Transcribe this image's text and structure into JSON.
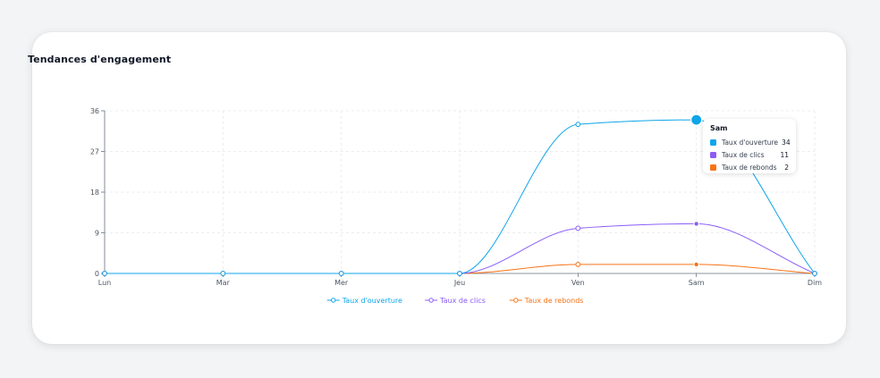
{
  "card": {
    "title": "Tendances d'engagement"
  },
  "chart_data": {
    "type": "line",
    "title": "Tendances d'engagement",
    "categories": [
      "Lun",
      "Mar",
      "Mer",
      "Jeu",
      "Ven",
      "Sam",
      "Dim"
    ],
    "ylim": [
      0,
      36
    ],
    "yticks": [
      "0",
      "9",
      "18",
      "27",
      "36"
    ],
    "grid": true,
    "legend_position": "bottom",
    "series": [
      {
        "name": "Taux d'ouverture",
        "color": "#0ea5e9",
        "values": [
          0,
          0,
          0,
          0,
          33,
          34,
          0
        ]
      },
      {
        "name": "Taux de clics",
        "color": "#8b5cf6",
        "values": [
          0,
          0,
          0,
          0,
          10,
          11,
          0
        ]
      },
      {
        "name": "Taux de rebonds",
        "color": "#f97316",
        "values": [
          0,
          0,
          0,
          0,
          2,
          2,
          0
        ]
      }
    ],
    "tooltip": {
      "category": "Sam",
      "rows": [
        {
          "name": "Taux d'ouverture",
          "value": "34",
          "color": "#0ea5e9"
        },
        {
          "name": "Taux de clics",
          "value": "11",
          "color": "#8b5cf6"
        },
        {
          "name": "Taux de rebonds",
          "value": "2",
          "color": "#f97316"
        }
      ]
    }
  }
}
